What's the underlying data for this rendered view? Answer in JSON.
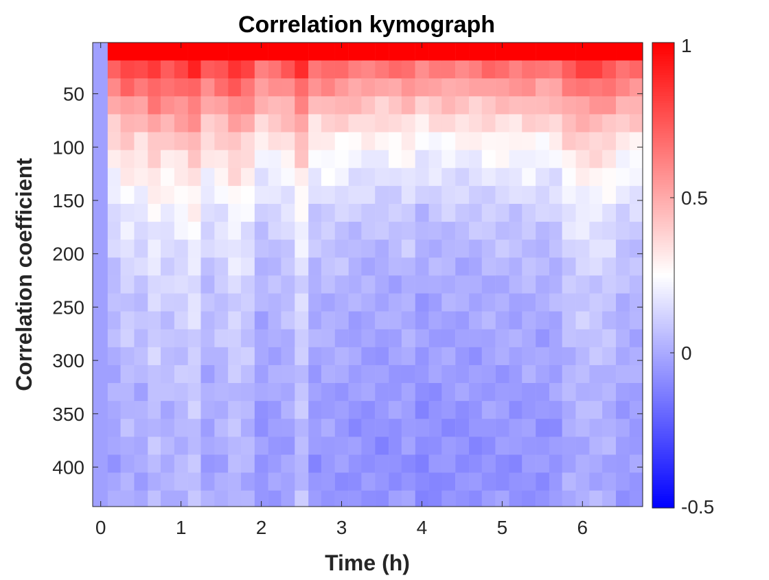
{
  "chart_data": {
    "type": "heatmap",
    "title": "Correlation kymograph",
    "xlabel": "Time (h)",
    "ylabel": "Correlation coefficient",
    "xlim": [
      -0.1,
      6.75
    ],
    "ylim": [
      437,
      2
    ],
    "y_reversed": true,
    "x_ticks": [
      "0",
      "1",
      "2",
      "3",
      "4",
      "5",
      "6"
    ],
    "x_tick_values": [
      0,
      1,
      2,
      3,
      4,
      5,
      6
    ],
    "y_ticks": [
      "50",
      "100",
      "150",
      "200",
      "250",
      "300",
      "350",
      "400"
    ],
    "y_tick_values": [
      50,
      100,
      150,
      200,
      250,
      300,
      350,
      400
    ],
    "colorbar": {
      "limits": [
        -0.5,
        1
      ],
      "ticks": [
        "-0.5",
        "0",
        "0.5",
        "1"
      ],
      "tick_values": [
        -0.5,
        0,
        0.5,
        1
      ],
      "colormap": "blue-white-red",
      "color_low": "#0000ff",
      "color_mid": "#ffffff",
      "color_high": "#ff0000",
      "color_mid_value": 0.25
    },
    "time_step_h": 0.1667,
    "lag_step": 16.8,
    "column_x": [
      0,
      0.17,
      0.33,
      0.5,
      0.67,
      0.83,
      1.0,
      1.17,
      1.33,
      1.5,
      1.67,
      1.83,
      2.0,
      2.17,
      2.33,
      2.5,
      2.67,
      2.83,
      3.0,
      3.17,
      3.33,
      3.5,
      3.67,
      3.83,
      4.0,
      4.17,
      4.33,
      4.5,
      4.67,
      4.83,
      5.0,
      5.17,
      5.33,
      5.5,
      5.67,
      5.83,
      6.0,
      6.17,
      6.33,
      6.5,
      6.67
    ],
    "row_lag_centers": [
      10.4,
      27.2,
      44.0,
      60.8,
      77.6,
      94.4,
      111.2,
      128.0,
      144.8,
      161.6,
      178.4,
      195.2,
      212.0,
      228.8,
      245.6,
      262.4,
      279.2,
      296.0,
      312.8,
      329.6,
      346.4,
      363.2,
      380.0,
      396.8,
      413.6,
      430.4
    ],
    "base_profile": [
      1.0,
      0.72,
      0.6,
      0.5,
      0.42,
      0.34,
      0.28,
      0.23,
      0.19,
      0.15,
      0.12,
      0.1,
      0.08,
      0.06,
      0.05,
      0.04,
      0.03,
      0.02,
      0.01,
      0.0,
      -0.01,
      -0.02,
      -0.02,
      -0.03,
      -0.03,
      -0.02
    ],
    "column_offsets": [
      -0.1,
      0.0,
      0.05,
      0.02,
      0.08,
      0.04,
      0.06,
      0.1,
      0.0,
      0.03,
      0.08,
      0.05,
      -0.04,
      -0.02,
      0.0,
      0.08,
      -0.04,
      -0.02,
      -0.03,
      -0.05,
      -0.05,
      -0.06,
      -0.05,
      -0.03,
      -0.08,
      -0.06,
      -0.05,
      -0.06,
      -0.06,
      -0.04,
      -0.04,
      -0.05,
      -0.03,
      -0.05,
      -0.04,
      0.02,
      0.04,
      0.04,
      0.03,
      -0.02,
      -0.02
    ],
    "first_column_value": -0.03
  }
}
